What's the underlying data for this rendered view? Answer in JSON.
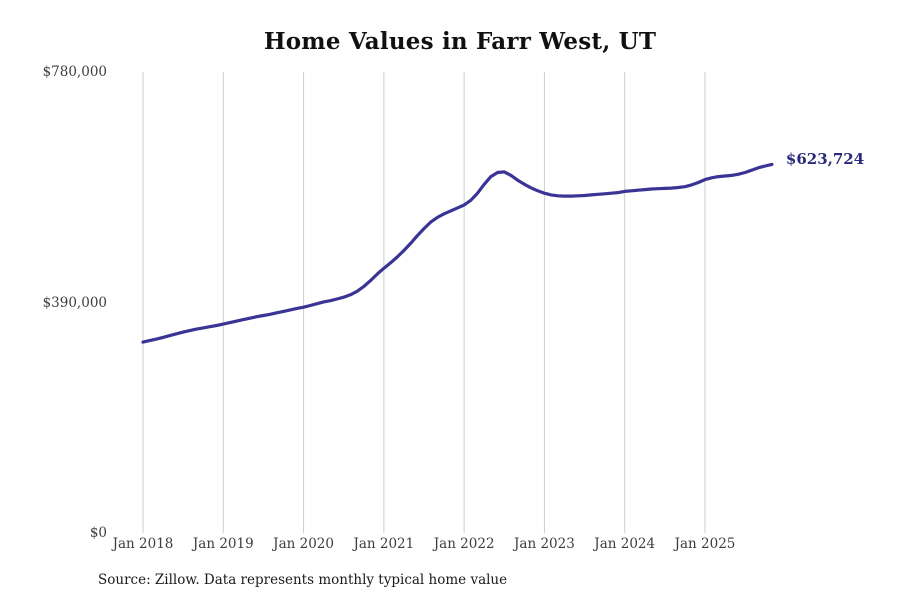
{
  "title": "Home Values in Farr West, UT",
  "source_note": "Source: Zillow. Data represents monthly typical home value",
  "end_label": "$623,724",
  "colors": {
    "line": "#3a3496",
    "end_label": "#2c2a7b",
    "grid": "#cdcdcd",
    "axis_text": "#3d3d3d",
    "title_text": "#111111",
    "source_text": "#1a1a1a",
    "background": "#ffffff"
  },
  "chart_data": {
    "type": "line",
    "title": "Home Values in Farr West, UT",
    "xlabel": "",
    "ylabel": "",
    "ylim": [
      0,
      780000
    ],
    "grid": "vertical-yearly",
    "legend": "none",
    "frequency": "monthly",
    "x_start": "Jan 2018",
    "x_end": "Nov 2025",
    "x_tick_labels": [
      "Jan 2018",
      "Jan 2019",
      "Jan 2020",
      "Jan 2021",
      "Jan 2022",
      "Jan 2023",
      "Jan 2024",
      "Jan 2025"
    ],
    "y_ticks": [
      {
        "label": "$780,000",
        "value": 780000
      },
      {
        "label": "$390,000",
        "value": 390000
      },
      {
        "label": "$0",
        "value": 0
      }
    ],
    "last_value": 623724,
    "series": [
      {
        "name": "Typical home value",
        "values": [
          323000,
          325500,
          328000,
          331000,
          334000,
          337000,
          340000,
          342500,
          345000,
          347000,
          349000,
          351000,
          353500,
          356000,
          358500,
          361000,
          363500,
          366000,
          368000,
          370000,
          372500,
          375000,
          377500,
          380000,
          382000,
          385000,
          388000,
          391000,
          393000,
          396000,
          399000,
          403000,
          409000,
          417000,
          427000,
          438000,
          448000,
          457000,
          467000,
          478000,
          490000,
          503000,
          515000,
          526000,
          534000,
          540000,
          545000,
          550000,
          555000,
          563000,
          575000,
          590000,
          603000,
          610000,
          611000,
          605000,
          597000,
          590000,
          584000,
          579000,
          575000,
          572000,
          570500,
          570000,
          570000,
          570500,
          571000,
          572000,
          573000,
          574000,
          575000,
          576000,
          578000,
          579000,
          580000,
          581000,
          582000,
          582500,
          583000,
          583500,
          584500,
          586000,
          589000,
          593000,
          598000,
          601000,
          603000,
          604000,
          605000,
          607000,
          610000,
          614000,
          618000,
          621000,
          623724
        ]
      }
    ]
  }
}
